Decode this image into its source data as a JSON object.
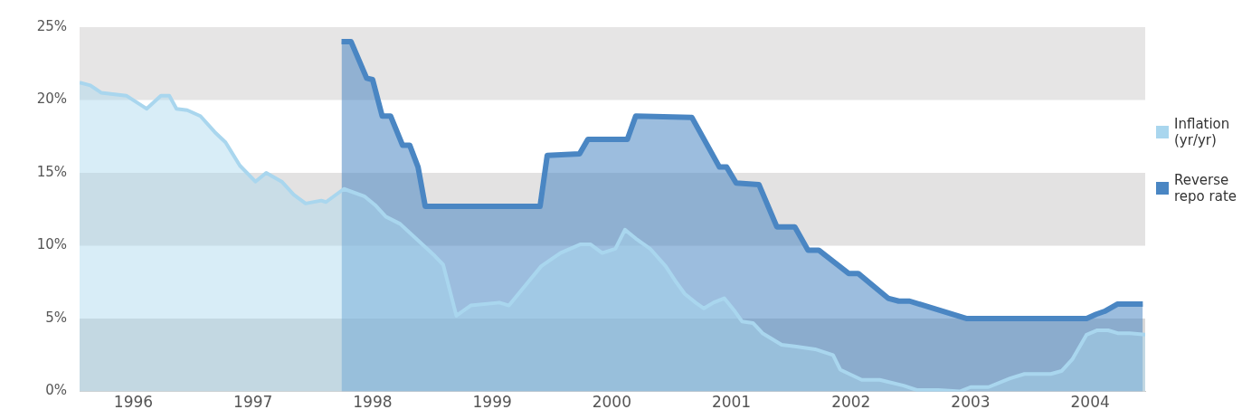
{
  "chart_data": {
    "type": "area",
    "xlim": [
      1996.05,
      2004.96
    ],
    "xticks": [
      {
        "value": 1996.5,
        "label": "1996"
      },
      {
        "value": 1997.5,
        "label": "1997"
      },
      {
        "value": 1998.5,
        "label": "1998"
      },
      {
        "value": 1999.5,
        "label": "1999"
      },
      {
        "value": 2000.5,
        "label": "2000"
      },
      {
        "value": 2001.5,
        "label": "2001"
      },
      {
        "value": 2002.5,
        "label": "2002"
      },
      {
        "value": 2003.5,
        "label": "2003"
      },
      {
        "value": 2004.5,
        "label": "2004"
      }
    ],
    "ylim": [
      0,
      25
    ],
    "yticks": [
      {
        "value": 0,
        "label": "0%"
      },
      {
        "value": 5,
        "label": "5%"
      },
      {
        "value": 10,
        "label": "10%"
      },
      {
        "value": 15,
        "label": "15%"
      },
      {
        "value": 20,
        "label": "20%"
      },
      {
        "value": 25,
        "label": "25%"
      }
    ],
    "bands": [
      {
        "axis": "y",
        "from": 0,
        "to": 5,
        "color": "#d9d9d9"
      },
      {
        "axis": "y",
        "from": 10,
        "to": 15,
        "color": "#e3e2e2"
      },
      {
        "axis": "y",
        "from": 20,
        "to": 25,
        "color": "#e6e5e5"
      }
    ],
    "grid": false,
    "legend": "right",
    "marker": "none",
    "series": [
      {
        "name": "Inflation (yr/yr)",
        "color": "#a9d6ee",
        "x": [
          1996.05,
          1996.14,
          1996.23,
          1996.44,
          1996.61,
          1996.73,
          1996.8,
          1996.86,
          1996.95,
          1997.06,
          1997.18,
          1997.27,
          1997.39,
          1997.52,
          1997.61,
          1997.74,
          1997.84,
          1997.94,
          1998.07,
          1998.11,
          1998.26,
          1998.43,
          1998.52,
          1998.61,
          1998.73,
          1999.02,
          1999.09,
          1999.2,
          1999.32,
          1999.56,
          1999.64,
          1999.91,
          2000.07,
          2000.24,
          2000.32,
          2000.42,
          2000.53,
          2000.61,
          2000.7,
          2000.82,
          2000.95,
          2001.03,
          2001.11,
          2001.2,
          2001.27,
          2001.35,
          2001.44,
          2001.52,
          2001.59,
          2001.68,
          2001.76,
          2001.92,
          2002.03,
          2002.2,
          2002.35,
          2002.41,
          2002.59,
          2002.74,
          2002.94,
          2003.05,
          2003.23,
          2003.41,
          2003.5,
          2003.65,
          2003.83,
          2003.95,
          2004.17,
          2004.26,
          2004.35,
          2004.47,
          2004.56,
          2004.65,
          2004.73,
          2004.83,
          2004.96
        ],
        "values": [
          21.2,
          21.0,
          20.5,
          20.3,
          19.4,
          20.3,
          20.3,
          19.4,
          19.3,
          18.9,
          17.8,
          17.1,
          15.5,
          14.4,
          15.0,
          14.4,
          13.5,
          12.9,
          13.1,
          13.0,
          13.9,
          13.4,
          12.8,
          12.0,
          11.5,
          9.3,
          8.7,
          5.2,
          5.9,
          6.1,
          5.9,
          8.6,
          9.5,
          10.1,
          10.1,
          9.5,
          9.8,
          11.1,
          10.5,
          9.8,
          8.6,
          7.6,
          6.7,
          6.1,
          5.7,
          6.1,
          6.4,
          5.6,
          4.8,
          4.7,
          4.0,
          3.2,
          3.1,
          2.9,
          2.5,
          1.5,
          0.8,
          0.8,
          0.4,
          0.1,
          0.1,
          0.0,
          0.3,
          0.3,
          0.9,
          1.2,
          1.2,
          1.4,
          2.2,
          3.9,
          4.2,
          4.2,
          4.0,
          4.0,
          3.9
        ]
      },
      {
        "name": "Reverse repo rate",
        "color": "#4a86c3",
        "x": [
          1998.24,
          1998.32,
          1998.45,
          1998.5,
          1998.58,
          1998.65,
          1998.75,
          1998.81,
          1998.88,
          1998.94,
          1999.9,
          1999.96,
          2000.23,
          2000.3,
          2000.63,
          2000.7,
          2001.17,
          2001.4,
          2001.46,
          2001.54,
          2001.73,
          2001.88,
          2002.03,
          2002.14,
          2002.23,
          2002.48,
          2002.56,
          2002.81,
          2002.9,
          2002.99,
          2003.47,
          2004.47,
          2004.55,
          2004.62,
          2004.73,
          2004.94
        ],
        "values": [
          24.0,
          24.0,
          21.5,
          21.4,
          18.9,
          18.9,
          16.9,
          16.9,
          15.4,
          12.7,
          12.7,
          16.2,
          16.3,
          17.3,
          17.3,
          18.9,
          18.8,
          15.4,
          15.4,
          14.3,
          14.2,
          11.3,
          11.3,
          9.7,
          9.7,
          8.1,
          8.1,
          6.4,
          6.2,
          6.2,
          5.0,
          5.0,
          5.3,
          5.5,
          6.0,
          6.0
        ]
      }
    ]
  }
}
